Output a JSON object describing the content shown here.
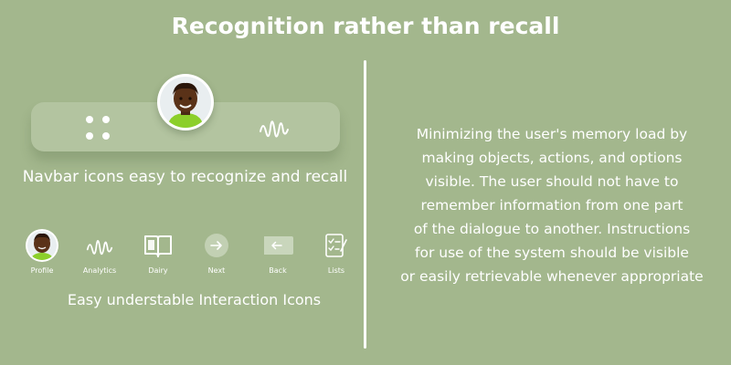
{
  "title": "Recognition rather than recall",
  "navbar": {
    "caption": "Navbar icons easy to recognize and recall",
    "icons": [
      "grid-icon",
      "avatar",
      "wave-icon"
    ]
  },
  "interaction_icons": {
    "caption": "Easy understable Interaction Icons",
    "items": [
      {
        "label": "Profile",
        "icon": "profile-avatar-icon"
      },
      {
        "label": "Analytics",
        "icon": "analytics-wave-icon"
      },
      {
        "label": "Dairy",
        "icon": "book-icon"
      },
      {
        "label": "Next",
        "icon": "arrow-right-circle-icon"
      },
      {
        "label": "Back",
        "icon": "arrow-left-tag-icon"
      },
      {
        "label": "Lists",
        "icon": "checklist-icon"
      }
    ]
  },
  "description": {
    "lines": [
      "Minimizing the user's memory load by",
      "making objects, actions, and options",
      "visible. The user should not have to",
      "remember information from one part",
      "of the dialogue to another. Instructions",
      "for use of the system should be visible",
      "or easily retrievable whenever appropriate"
    ]
  },
  "colors": {
    "background": "#a3b78d",
    "navbar": "#b3c4a0",
    "text": "#ffffff",
    "avatar_shirt": "#8ccf2a",
    "avatar_skin": "#5a3218"
  }
}
